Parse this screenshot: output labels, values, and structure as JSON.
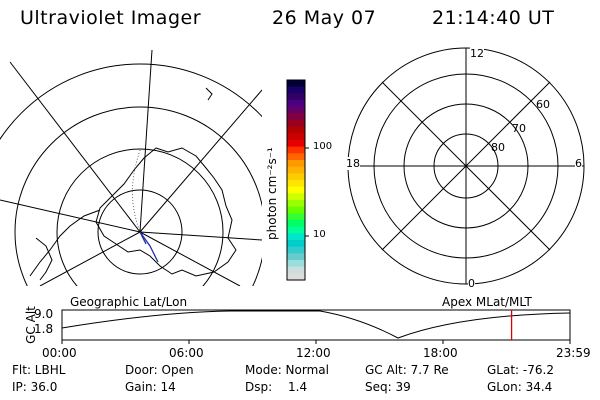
{
  "header": {
    "instrument": "Ultraviolet Imager",
    "date": "26 May 07",
    "time": "21:14:40 UT"
  },
  "left_map": {
    "caption": "Geographic Lat/Lon"
  },
  "right_map": {
    "caption": "Apex MLat/MLT",
    "mlt_labels": [
      "12",
      "6",
      "0",
      "18"
    ],
    "mlat_labels": [
      "60",
      "70",
      "80"
    ]
  },
  "colorbar": {
    "unit_label": "photon cm⁻²s⁻¹",
    "tick_labels": [
      "100",
      "10"
    ],
    "colors": [
      "#000033",
      "#1a0066",
      "#330066",
      "#4b0082",
      "#660066",
      "#800040",
      "#990020",
      "#b30000",
      "#cc0000",
      "#e60000",
      "#ff3300",
      "#ff6600",
      "#ff9900",
      "#ffb300",
      "#ffcc00",
      "#ffe600",
      "#ffff00",
      "#ccff00",
      "#99ff00",
      "#66ff00",
      "#33ff33",
      "#00ff66",
      "#00ff99",
      "#00e6cc",
      "#00cccc",
      "#33cccc",
      "#66cccc",
      "#99dddd",
      "#ccdddd",
      "#dddddd"
    ]
  },
  "altitude_panel": {
    "y_label": "GC Alt",
    "y_ticks": [
      "9.0",
      "1.8"
    ],
    "x_ticks": [
      "00:00",
      "06:00",
      "12:00",
      "18:00",
      "23:59"
    ],
    "current_marker_color": "#dd0000",
    "current_marker_time_hours": 21.24
  },
  "status": {
    "flt": "Flt: LBHL",
    "door": "Door: Open",
    "mode": "Mode: Normal",
    "gc_alt": "GC Alt: 7.7 Re",
    "glat": "GLat: -76.2",
    "ip": "IP: 36.0",
    "gain": "Gain: 14",
    "dsp_label": "Dsp:",
    "dsp_value": "1.4",
    "seq": "Seq: 39",
    "glon": "GLon: 34.4"
  }
}
